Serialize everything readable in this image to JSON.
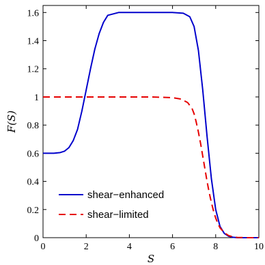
{
  "chart_data": {
    "type": "line",
    "xlabel": "S",
    "ylabel": "F(S)",
    "xlim": [
      0,
      10
    ],
    "ylim": [
      0,
      1.65
    ],
    "xticks": [
      0,
      2,
      4,
      6,
      8,
      10
    ],
    "yticks": [
      0,
      0.2,
      0.4,
      0.6,
      0.8,
      1,
      1.2,
      1.4,
      1.6
    ],
    "grid": false,
    "legend_position": "bottom-left",
    "series": [
      {
        "name": "shear−enhanced",
        "color": "#0000cc",
        "dash": "solid",
        "x": [
          0,
          0.5,
          0.8,
          1.0,
          1.2,
          1.4,
          1.6,
          1.8,
          2.0,
          2.2,
          2.4,
          2.6,
          2.8,
          3.0,
          3.5,
          4.0,
          5.0,
          6.0,
          6.5,
          6.8,
          7.0,
          7.2,
          7.4,
          7.6,
          7.8,
          8.0,
          8.2,
          8.4,
          8.6,
          8.8,
          9.0,
          9.5,
          10.0
        ],
        "y": [
          0.6,
          0.6,
          0.605,
          0.615,
          0.64,
          0.69,
          0.77,
          0.9,
          1.05,
          1.2,
          1.34,
          1.45,
          1.53,
          1.58,
          1.6,
          1.6,
          1.6,
          1.6,
          1.595,
          1.57,
          1.5,
          1.33,
          1.05,
          0.72,
          0.42,
          0.2,
          0.08,
          0.03,
          0.01,
          0.003,
          0.0,
          0.0,
          0.0
        ]
      },
      {
        "name": "shear−limited",
        "color": "#e60000",
        "dash": "dashed",
        "x": [
          0,
          1.0,
          2.0,
          3.0,
          4.0,
          5.0,
          6.0,
          6.4,
          6.7,
          6.9,
          7.0,
          7.1,
          7.2,
          7.3,
          7.4,
          7.5,
          7.6,
          7.7,
          7.8,
          7.9,
          8.0,
          8.1,
          8.2,
          8.4,
          8.6,
          8.8,
          9.0,
          9.5,
          10.0
        ],
        "y": [
          1.0,
          1.0,
          1.0,
          1.0,
          1.0,
          1.0,
          0.995,
          0.985,
          0.96,
          0.92,
          0.88,
          0.82,
          0.75,
          0.67,
          0.58,
          0.49,
          0.4,
          0.32,
          0.25,
          0.19,
          0.14,
          0.1,
          0.07,
          0.035,
          0.015,
          0.006,
          0.002,
          0.0,
          0.0
        ]
      }
    ]
  }
}
